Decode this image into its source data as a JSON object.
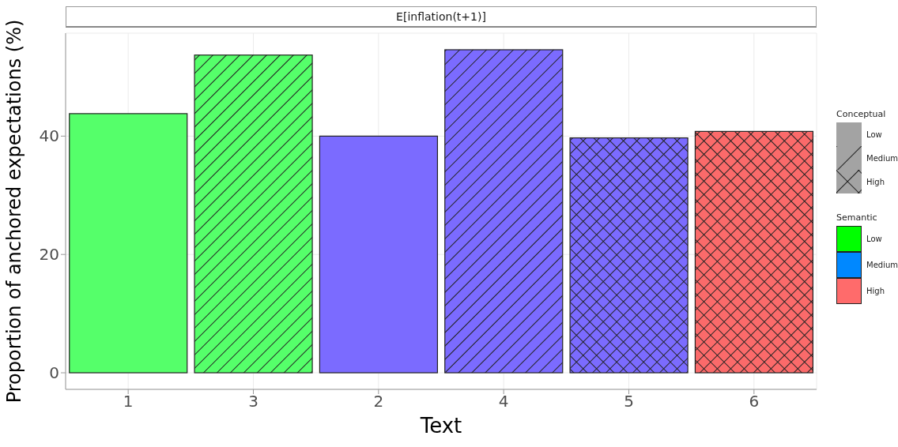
{
  "chart_data": {
    "type": "bar",
    "title": "E[inflation(t+1)]",
    "xlabel": "Text",
    "ylabel": "Proportion of anchored expectations (%)",
    "categories": [
      "1",
      "3",
      "2",
      "4",
      "5",
      "6"
    ],
    "stacked": true,
    "legend_title": "Conceptual",
    "series": [
      {
        "values": [
          43.8,
          null,
          40.0,
          null,
          null,
          null
        ],
        "colors": [
          "#55ff6a",
          "#55ff6a",
          "#7b6bff",
          "#7b6bff",
          "#7b6bff",
          "#fb6a6a"
        ]
      },
      {
        "values": [
          null,
          53.7,
          null,
          54.6,
          null,
          null
        ],
        "colors": [
          "#55ff6a",
          "#55ff6a",
          "#7b6bff",
          "#7b6bff",
          "#7b6bff",
          "#fb6a6a"
        ]
      },
      {
        "values": [
          null,
          null,
          null,
          null,
          39.7,
          40.8
        ],
        "colors": [
          "#55ff6a",
          "#55ff6a",
          "#7b6bff",
          "#7b6bff",
          "#7b6bff",
          "#fb6a6a"
        ]
      }
    ],
    "annotations": [
      "Low",
      "Medium",
      "High",
      "Semantic",
      "Low",
      "Medium",
      "High"
    ],
    "ylim": [
      -2.8,
      57.4
    ],
    "yticks": [
      0,
      20,
      40
    ],
    "grid": true
  }
}
